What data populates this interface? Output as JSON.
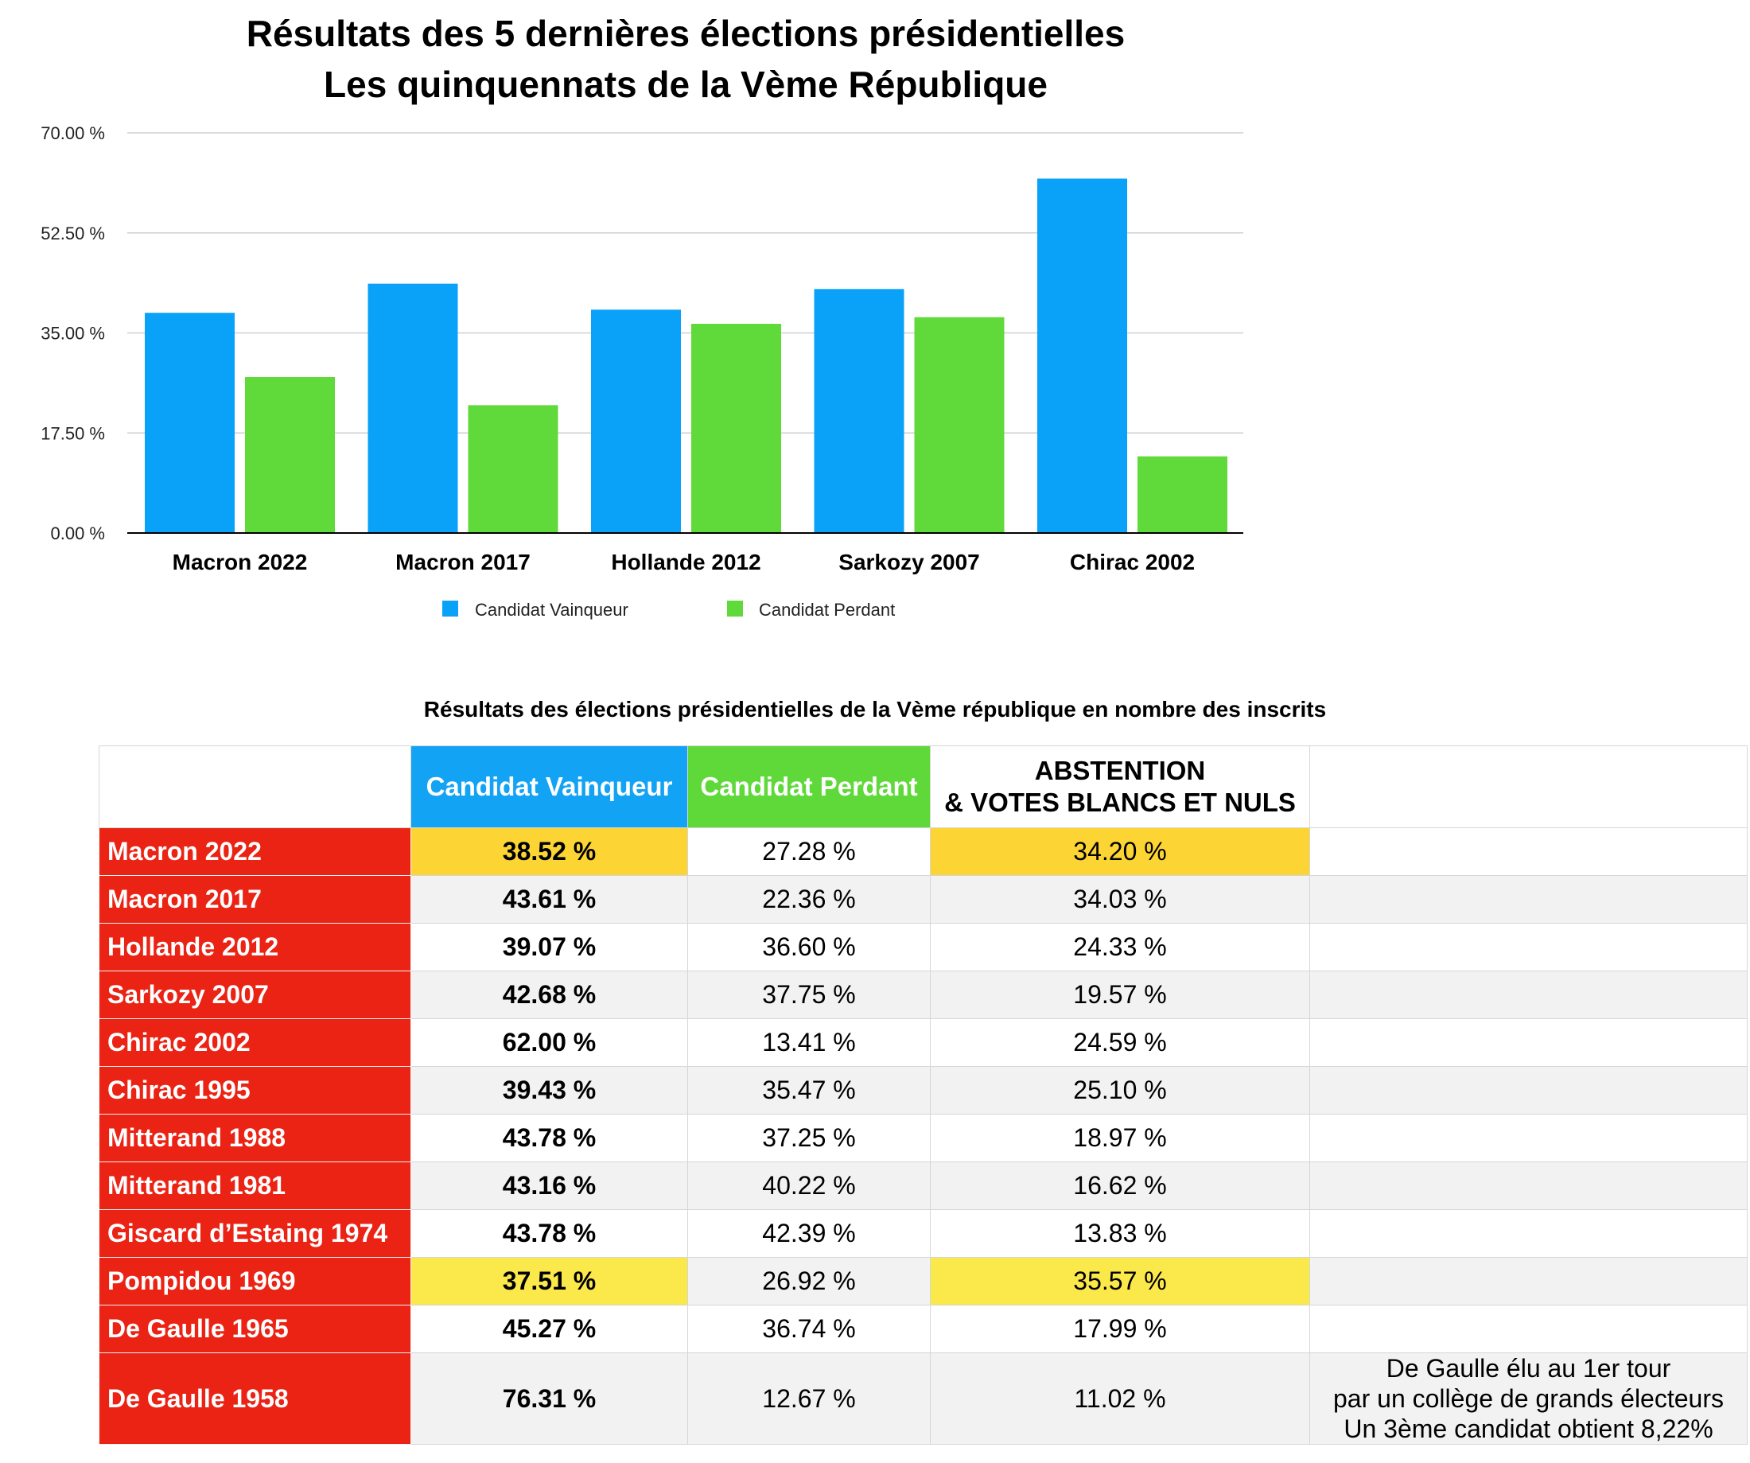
{
  "chart_data": {
    "type": "bar",
    "title": [
      "Résultats des 5 dernières élections présidentielles",
      "Les quinquennats de la Vème République"
    ],
    "categories": [
      "Macron 2022",
      "Macron 2017",
      "Hollande 2012",
      "Sarkozy 2007",
      "Chirac 2002"
    ],
    "series": [
      {
        "name": "Candidat Vainqueur",
        "values": [
          38.52,
          43.61,
          39.07,
          42.68,
          62.0
        ]
      },
      {
        "name": "Candidat Perdant",
        "values": [
          27.28,
          22.36,
          36.6,
          37.75,
          13.41
        ]
      }
    ],
    "yticks": [
      "0.00 %",
      "17.50 %",
      "35.00 %",
      "52.50 %",
      "70.00 %"
    ],
    "ylim": [
      0,
      70
    ],
    "xlabel": "",
    "ylabel": "",
    "grid": true,
    "legend_position": "bottom-center",
    "colors": {
      "winner": "#0aa1f8",
      "loser": "#60d93a"
    }
  },
  "table": {
    "title": "Résultats des élections présidentielles de la Vème république en nombre des inscrits",
    "headers": {
      "winner": "Candidat Vainqueur",
      "loser": "Candidat Perdant",
      "abstention_line1": "ABSTENTION",
      "abstention_line2": "& VOTES BLANCS ET NULS"
    },
    "rows": [
      {
        "name": "Macron 2022",
        "winner": "38.52 %",
        "loser": "27.28 %",
        "abstention": "34.20 %",
        "note": []
      },
      {
        "name": "Macron 2017",
        "winner": "43.61 %",
        "loser": "22.36 %",
        "abstention": "34.03 %",
        "note": []
      },
      {
        "name": "Hollande 2012",
        "winner": "39.07 %",
        "loser": "36.60 %",
        "abstention": "24.33 %",
        "note": []
      },
      {
        "name": "Sarkozy 2007",
        "winner": "42.68 %",
        "loser": "37.75 %",
        "abstention": "19.57 %",
        "note": []
      },
      {
        "name": "Chirac 2002",
        "winner": "62.00 %",
        "loser": "13.41 %",
        "abstention": "24.59 %",
        "note": []
      },
      {
        "name": "Chirac 1995",
        "winner": "39.43 %",
        "loser": "35.47 %",
        "abstention": "25.10 %",
        "note": []
      },
      {
        "name": "Mitterand 1988",
        "winner": "43.78 %",
        "loser": "37.25 %",
        "abstention": "18.97 %",
        "note": []
      },
      {
        "name": "Mitterand 1981",
        "winner": "43.16 %",
        "loser": "40.22 %",
        "abstention": "16.62 %",
        "note": []
      },
      {
        "name": "Giscard d’Estaing 1974",
        "winner": "43.78 %",
        "loser": "42.39 %",
        "abstention": "13.83 %",
        "note": []
      },
      {
        "name": "Pompidou 1969",
        "winner": "37.51 %",
        "loser": "26.92 %",
        "abstention": "35.57 %",
        "note": []
      },
      {
        "name": "De Gaulle 1965",
        "winner": "45.27 %",
        "loser": "36.74 %",
        "abstention": "17.99 %",
        "note": []
      },
      {
        "name": "De Gaulle 1958",
        "winner": "76.31 %",
        "loser": "12.67 %",
        "abstention": "11.02 %",
        "note": [
          "De Gaulle élu au 1er tour",
          "par un collège de grands électeurs",
          "Un 3ème candidat obtient 8,22%"
        ]
      }
    ]
  }
}
